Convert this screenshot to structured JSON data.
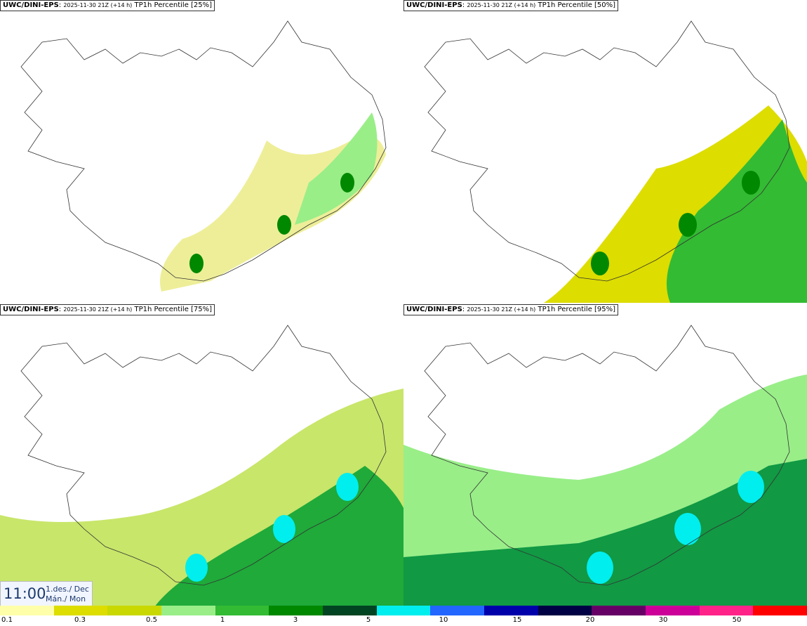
{
  "panels": [
    {
      "model": "UWC/DINI-EPS",
      "run": "2025-11-30 21Z (+14 h)",
      "field": "TP1h Percentile [25%]",
      "level": 1
    },
    {
      "model": "UWC/DINI-EPS",
      "run": "2025-11-30 21Z (+14 h)",
      "field": "TP1h Percentile [50%]",
      "level": 2
    },
    {
      "model": "UWC/DINI-EPS",
      "run": "2025-11-30 21Z (+14 h)",
      "field": "TP1h Percentile [75%]",
      "level": 3
    },
    {
      "model": "UWC/DINI-EPS",
      "run": "2025-11-30 21Z (+14 h)",
      "field": "TP1h Percentile [95%]",
      "level": 4
    }
  ],
  "valid_time": {
    "time": "11:00",
    "day_line1": "1.des./ Dec",
    "day_line2": "Mán./ Mon"
  },
  "colorbar": {
    "colors": [
      "#ffffaa",
      "#dddd00",
      "#c8d800",
      "#99ee88",
      "#33bb33",
      "#008800",
      "#004422",
      "#00eeee",
      "#2266ff",
      "#0000aa",
      "#000044",
      "#660066",
      "#cc0099",
      "#ff2288",
      "#ff0000"
    ],
    "ticks": [
      "0.1",
      "0.3",
      "0.5",
      "1",
      "3",
      "5",
      "10",
      "15",
      "20",
      "30",
      "50"
    ]
  }
}
